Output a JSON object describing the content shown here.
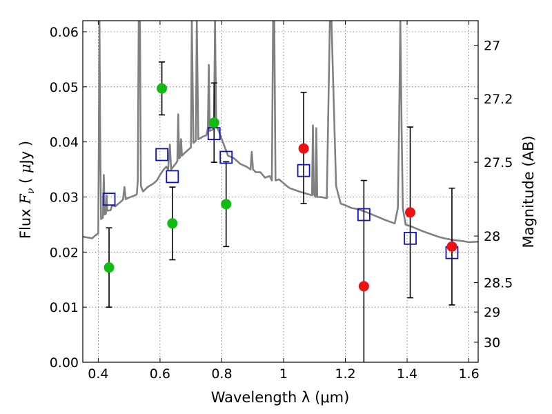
{
  "chart_data": {
    "type": "scatter",
    "xlabel": "Wavelength  λ (μm)",
    "ylabel": "Flux  F_ν  ( μJy )",
    "y2label": "Magnitude (AB)",
    "xlim": [
      0.35,
      1.63
    ],
    "ylim": [
      0.0,
      0.062
    ],
    "grid": true,
    "x_ticks": [
      "0.4",
      "0.6",
      "0.8",
      "1",
      "1.2",
      "1.4",
      "1.6"
    ],
    "x_tick_values": [
      0.4,
      0.6,
      0.8,
      1.0,
      1.2,
      1.4,
      1.6
    ],
    "y_ticks": [
      "0.00",
      "0.01",
      "0.02",
      "0.03",
      "0.04",
      "0.05",
      "0.06"
    ],
    "y_tick_values": [
      0.0,
      0.01,
      0.02,
      0.03,
      0.04,
      0.05,
      0.06
    ],
    "y2_ticks": [
      {
        "label": "27",
        "mag": 27.0
      },
      {
        "label": "27.2",
        "mag": 27.2
      },
      {
        "label": "27.5",
        "mag": 27.5
      },
      {
        "label": "28",
        "mag": 28.0
      },
      {
        "label": "28.5",
        "mag": 28.5
      },
      {
        "label": "29",
        "mag": 29.0
      },
      {
        "label": "30",
        "mag": 30.0
      }
    ],
    "colors": {
      "green": "#11bb11",
      "red": "#ee1111",
      "model_square": "#1111bb",
      "spectrum": "#808080",
      "errorbar": "#000000"
    },
    "green_points": [
      {
        "x": 0.435,
        "y": 0.0172,
        "err_low": 0.0072,
        "err_high": 0.0072
      },
      {
        "x": 0.606,
        "y": 0.0497,
        "err_low": 0.0048,
        "err_high": 0.0048
      },
      {
        "x": 0.64,
        "y": 0.0252,
        "err_low": 0.0066,
        "err_high": 0.0066
      },
      {
        "x": 0.775,
        "y": 0.0435,
        "err_low": 0.0072,
        "err_high": 0.0072
      },
      {
        "x": 0.814,
        "y": 0.0287,
        "err_low": 0.0077,
        "err_high": 0.0077
      }
    ],
    "red_points": [
      {
        "x": 1.065,
        "y": 0.0388,
        "err_low": 0.01,
        "err_high": 0.0102
      },
      {
        "x": 1.26,
        "y": 0.0138,
        "err_low": 0.014,
        "err_high": 0.0192
      },
      {
        "x": 1.41,
        "y": 0.0272,
        "err_low": 0.0155,
        "err_high": 0.0155
      },
      {
        "x": 1.545,
        "y": 0.021,
        "err_low": 0.0106,
        "err_high": 0.0106
      }
    ],
    "model_squares": [
      {
        "x": 0.435,
        "y": 0.0296
      },
      {
        "x": 0.606,
        "y": 0.0377
      },
      {
        "x": 0.64,
        "y": 0.0337
      },
      {
        "x": 0.775,
        "y": 0.0415
      },
      {
        "x": 0.814,
        "y": 0.0372
      },
      {
        "x": 1.065,
        "y": 0.0348
      },
      {
        "x": 1.26,
        "y": 0.0268
      },
      {
        "x": 1.41,
        "y": 0.0225
      },
      {
        "x": 1.545,
        "y": 0.0199
      }
    ],
    "spectrum": [
      [
        0.35,
        0.0228
      ],
      [
        0.38,
        0.0225
      ],
      [
        0.395,
        0.0232
      ],
      [
        0.4,
        0.0234
      ],
      [
        0.402,
        0.042
      ],
      [
        0.404,
        0.062
      ],
      [
        0.406,
        0.042
      ],
      [
        0.409,
        0.026
      ],
      [
        0.415,
        0.0262
      ],
      [
        0.418,
        0.034
      ],
      [
        0.421,
        0.0268
      ],
      [
        0.425,
        0.027
      ],
      [
        0.427,
        0.0303
      ],
      [
        0.429,
        0.0275
      ],
      [
        0.44,
        0.0276
      ],
      [
        0.445,
        0.0285
      ],
      [
        0.455,
        0.0283
      ],
      [
        0.47,
        0.029
      ],
      [
        0.48,
        0.0295
      ],
      [
        0.485,
        0.0318
      ],
      [
        0.489,
        0.0296
      ],
      [
        0.5,
        0.0299
      ],
      [
        0.515,
        0.0302
      ],
      [
        0.525,
        0.0305
      ],
      [
        0.528,
        0.033
      ],
      [
        0.531,
        0.062
      ],
      [
        0.535,
        0.062
      ],
      [
        0.538,
        0.032
      ],
      [
        0.545,
        0.031
      ],
      [
        0.56,
        0.0318
      ],
      [
        0.58,
        0.0325
      ],
      [
        0.59,
        0.033
      ],
      [
        0.6,
        0.034
      ],
      [
        0.612,
        0.035
      ],
      [
        0.62,
        0.0355
      ],
      [
        0.626,
        0.035
      ],
      [
        0.632,
        0.0395
      ],
      [
        0.636,
        0.035
      ],
      [
        0.65,
        0.036
      ],
      [
        0.656,
        0.0365
      ],
      [
        0.659,
        0.045
      ],
      [
        0.662,
        0.037
      ],
      [
        0.665,
        0.0372
      ],
      [
        0.668,
        0.0405
      ],
      [
        0.671,
        0.0375
      ],
      [
        0.68,
        0.038
      ],
      [
        0.7,
        0.039
      ],
      [
        0.703,
        0.062
      ],
      [
        0.708,
        0.0398
      ],
      [
        0.716,
        0.0402
      ],
      [
        0.719,
        0.062
      ],
      [
        0.724,
        0.0405
      ],
      [
        0.74,
        0.041
      ],
      [
        0.75,
        0.0412
      ],
      [
        0.755,
        0.0425
      ],
      [
        0.758,
        0.054
      ],
      [
        0.761,
        0.042
      ],
      [
        0.77,
        0.0422
      ],
      [
        0.775,
        0.044
      ],
      [
        0.778,
        0.062
      ],
      [
        0.782,
        0.043
      ],
      [
        0.79,
        0.042
      ],
      [
        0.8,
        0.0405
      ],
      [
        0.81,
        0.039
      ],
      [
        0.82,
        0.0375
      ],
      [
        0.84,
        0.037
      ],
      [
        0.86,
        0.036
      ],
      [
        0.88,
        0.0355
      ],
      [
        0.893,
        0.035
      ],
      [
        0.897,
        0.0382
      ],
      [
        0.901,
        0.035
      ],
      [
        0.91,
        0.0345
      ],
      [
        0.925,
        0.0345
      ],
      [
        0.94,
        0.0335
      ],
      [
        0.955,
        0.0338
      ],
      [
        0.962,
        0.033
      ],
      [
        0.966,
        0.062
      ],
      [
        0.97,
        0.062
      ],
      [
        0.974,
        0.033
      ],
      [
        0.985,
        0.0332
      ],
      [
        1.0,
        0.0325
      ],
      [
        1.01,
        0.032
      ],
      [
        1.02,
        0.0316
      ],
      [
        1.05,
        0.031
      ],
      [
        1.08,
        0.0305
      ],
      [
        1.092,
        0.0303
      ],
      [
        1.095,
        0.043
      ],
      [
        1.098,
        0.0305
      ],
      [
        1.103,
        0.03
      ],
      [
        1.106,
        0.0425
      ],
      [
        1.109,
        0.03
      ],
      [
        1.12,
        0.03
      ],
      [
        1.14,
        0.0298
      ],
      [
        1.15,
        0.062
      ],
      [
        1.155,
        0.062
      ],
      [
        1.17,
        0.032
      ],
      [
        1.185,
        0.0288
      ],
      [
        1.2,
        0.0285
      ],
      [
        1.22,
        0.028
      ],
      [
        1.24,
        0.0278
      ],
      [
        1.27,
        0.0272
      ],
      [
        1.3,
        0.0265
      ],
      [
        1.33,
        0.0258
      ],
      [
        1.36,
        0.0252
      ],
      [
        1.37,
        0.028
      ],
      [
        1.374,
        0.043
      ],
      [
        1.378,
        0.062
      ],
      [
        1.382,
        0.043
      ],
      [
        1.386,
        0.028
      ],
      [
        1.395,
        0.025
      ],
      [
        1.42,
        0.0245
      ],
      [
        1.45,
        0.0238
      ],
      [
        1.48,
        0.0232
      ],
      [
        1.5,
        0.0228
      ],
      [
        1.52,
        0.0225
      ],
      [
        1.55,
        0.0222
      ],
      [
        1.58,
        0.022
      ],
      [
        1.6,
        0.0218
      ],
      [
        1.63,
        0.0219
      ]
    ]
  }
}
